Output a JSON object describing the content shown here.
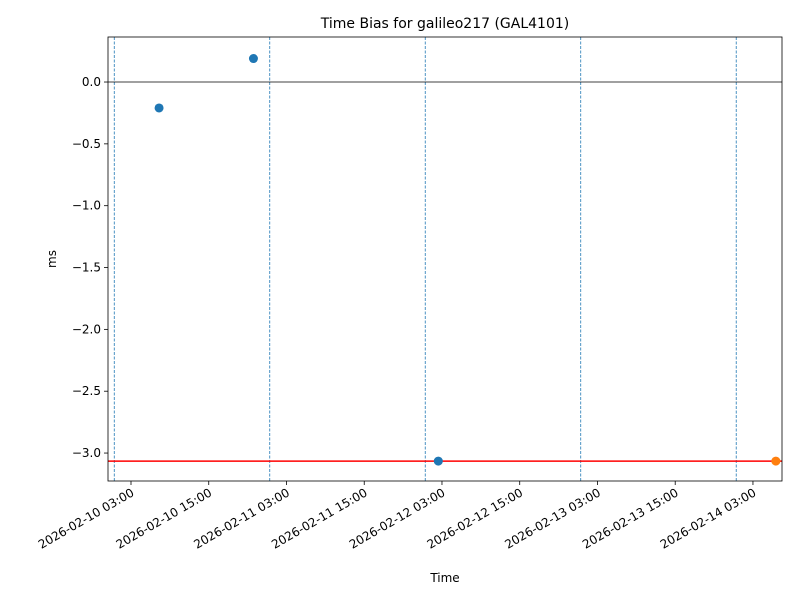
{
  "chart_data": {
    "type": "scatter",
    "title": "Time Bias for galileo217 (GAL4101)",
    "xlabel": "Time",
    "ylabel": "ms",
    "xlim": [
      "2026-02-09 23:27",
      "2026-02-14 07:29"
    ],
    "ylim": [
      -3.226,
      0.364
    ],
    "xticks": [
      "2026-02-10 03:00",
      "2026-02-10 15:00",
      "2026-02-11 03:00",
      "2026-02-11 15:00",
      "2026-02-12 03:00",
      "2026-02-12 15:00",
      "2026-02-13 03:00",
      "2026-02-13 15:00",
      "2026-02-14 03:00"
    ],
    "yticks": [
      {
        "value": 0,
        "label": "0.0"
      },
      {
        "value": -0.5,
        "label": "−0.5"
      },
      {
        "value": -1,
        "label": "−1.0"
      },
      {
        "value": -1.5,
        "label": "−1.5"
      },
      {
        "value": -2,
        "label": "−2.0"
      },
      {
        "value": -2.5,
        "label": "−2.5"
      },
      {
        "value": -3,
        "label": "−3.0"
      }
    ],
    "series": [
      {
        "color": "#1f77b4",
        "x": [
          "2026-02-10 07:20",
          "2026-02-10 21:54",
          "2026-02-12 02:26"
        ],
        "values": [
          -0.21,
          0.19,
          -3.065
        ]
      },
      {
        "color": "#ff7f0e",
        "x": [
          "2026-02-14 06:32"
        ],
        "values": [
          -3.065
        ]
      }
    ],
    "vlines": [
      "2026-02-10 00:25",
      "2026-02-11 00:25",
      "2026-02-12 00:25",
      "2026-02-13 00:25",
      "2026-02-14 00:25"
    ],
    "vline_color": "#1f77b4",
    "hline": 0,
    "threshold": -3.065,
    "threshold_color": "#ff0000"
  }
}
